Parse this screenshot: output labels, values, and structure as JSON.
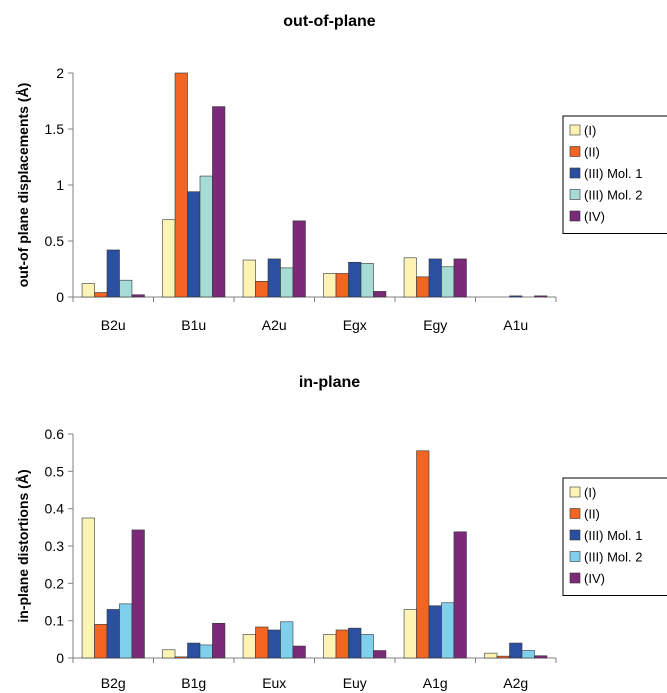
{
  "chart_data": [
    {
      "type": "bar",
      "title": "out-of-plane",
      "xlabel": "",
      "ylabel": "out-of plane displacements (Å)",
      "ylim": [
        0,
        2
      ],
      "yticks": [
        "0",
        "0.5",
        "1",
        "1.5",
        "2"
      ],
      "ytick_values": [
        0,
        0.5,
        1,
        1.5,
        2
      ],
      "categories": [
        "B2u",
        "B1u",
        "A2u",
        "Egx",
        "Egy",
        "A1u"
      ],
      "grid": false,
      "legend_position": "right",
      "series": [
        {
          "name": "(I)",
          "color": "#fdf3b5",
          "values": [
            0.12,
            0.69,
            0.33,
            0.21,
            0.35,
            0.0
          ]
        },
        {
          "name": "(II)",
          "color": "#f26522",
          "values": [
            0.04,
            2.0,
            0.14,
            0.21,
            0.18,
            0.0
          ]
        },
        {
          "name": "(III) Mol. 1",
          "color": "#2b4fa1",
          "values": [
            0.42,
            0.94,
            0.34,
            0.31,
            0.34,
            0.01
          ]
        },
        {
          "name": "(III) Mol. 2",
          "color": "#a6dcd5",
          "values": [
            0.15,
            1.08,
            0.26,
            0.3,
            0.27,
            0.0
          ]
        },
        {
          "name": "(IV)",
          "color": "#7b2a7a",
          "values": [
            0.02,
            1.7,
            0.68,
            0.05,
            0.34,
            0.01
          ]
        }
      ]
    },
    {
      "type": "bar",
      "title": "in-plane",
      "xlabel": "",
      "ylabel": "in-plane distortions (Å)",
      "ylim": [
        0,
        0.6
      ],
      "yticks": [
        "0",
        "0.1",
        "0.2",
        "0.3",
        "0.4",
        "0.5",
        "0.6"
      ],
      "ytick_values": [
        0,
        0.1,
        0.2,
        0.3,
        0.4,
        0.5,
        0.6
      ],
      "categories": [
        "B2g",
        "B1g",
        "Eux",
        "Euy",
        "A1g",
        "A2g"
      ],
      "grid": false,
      "legend_position": "right",
      "series": [
        {
          "name": "(I)",
          "color": "#fdf3b5",
          "values": [
            0.375,
            0.022,
            0.063,
            0.063,
            0.13,
            0.013
          ]
        },
        {
          "name": "(II)",
          "color": "#f26522",
          "values": [
            0.09,
            0.003,
            0.083,
            0.075,
            0.555,
            0.005
          ]
        },
        {
          "name": "(III) Mol. 1",
          "color": "#2b4fa1",
          "values": [
            0.13,
            0.04,
            0.075,
            0.08,
            0.14,
            0.04
          ]
        },
        {
          "name": "(III) Mol. 2",
          "color": "#7fd0ec",
          "values": [
            0.145,
            0.035,
            0.097,
            0.063,
            0.148,
            0.02
          ]
        },
        {
          "name": "(IV)",
          "color": "#7b2a7a",
          "values": [
            0.343,
            0.093,
            0.032,
            0.02,
            0.338,
            0.006
          ]
        }
      ]
    }
  ]
}
